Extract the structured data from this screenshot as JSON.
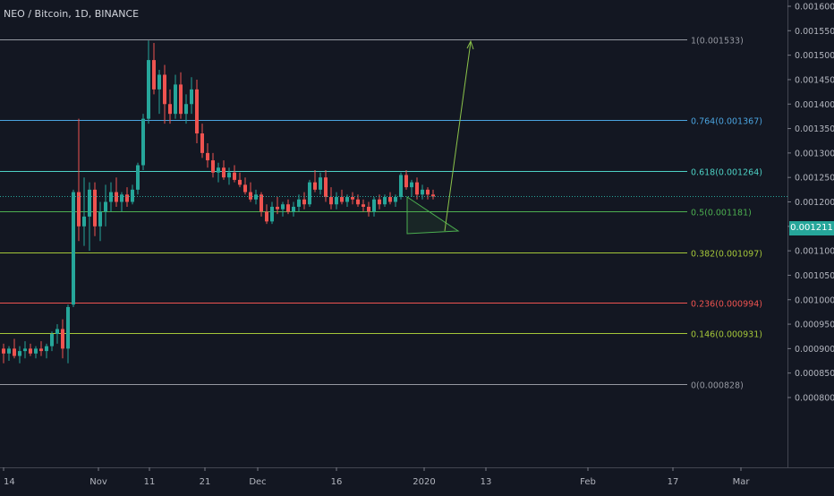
{
  "header": {
    "title": "NEO / Bitcoin, 1D, BINANCE"
  },
  "colors": {
    "background": "#131722",
    "up": "#26a69a",
    "down": "#ef5350",
    "axis_text": "#b2b5be",
    "grid": "#2a2e39",
    "target_arrow": "#8bc34a"
  },
  "chart_data": {
    "type": "candlestick",
    "title": "NEO / Bitcoin, 1D, BINANCE",
    "ylim": [
      0.000795,
      0.001612
    ],
    "y_ticks": [
      "0.001600",
      "0.001550",
      "0.001500",
      "0.001450",
      "0.001400",
      "0.001350",
      "0.001300",
      "0.001250",
      "0.001200",
      "0.001150",
      "0.001100",
      "0.001050",
      "0.001000",
      "0.000950",
      "0.000900",
      "0.000850",
      "0.000800"
    ],
    "x_ticks": [
      "14",
      "Nov",
      "11",
      "21",
      "Dec",
      "16",
      "2020",
      "13",
      "Feb",
      "17",
      "Mar"
    ],
    "last_price": "0.001211",
    "fib_levels": [
      {
        "ratio": "1",
        "value": 0.001533,
        "label": "1(0.001533)",
        "color": "#9598a1"
      },
      {
        "ratio": "0.764",
        "value": 0.001367,
        "label": "0.764(0.001367)",
        "color": "#4aa3df"
      },
      {
        "ratio": "0.618",
        "value": 0.001264,
        "label": "0.618(0.001264)",
        "color": "#4dd0c4"
      },
      {
        "ratio": "0.5",
        "value": 0.001181,
        "label": "0.5(0.001181)",
        "color": "#4caf50"
      },
      {
        "ratio": "0.382",
        "value": 0.001097,
        "label": "0.382(0.001097)",
        "color": "#a4c639"
      },
      {
        "ratio": "0.236",
        "value": 0.000994,
        "label": "0.236(0.000994)",
        "color": "#ef5350"
      },
      {
        "ratio": "0.146",
        "value": 0.000931,
        "label": "0.146(0.000931)",
        "color": "#a4c639"
      },
      {
        "ratio": "0",
        "value": 0.000828,
        "label": "0(0.000828)",
        "color": "#9598a1"
      }
    ],
    "candles": [
      {
        "o": 0.0009,
        "h": 0.00091,
        "l": 0.00087,
        "c": 0.00089
      },
      {
        "o": 0.00089,
        "h": 0.000905,
        "l": 0.000875,
        "c": 0.0009
      },
      {
        "o": 0.0009,
        "h": 0.00092,
        "l": 0.00088,
        "c": 0.000885
      },
      {
        "o": 0.000885,
        "h": 0.000905,
        "l": 0.00087,
        "c": 0.000895
      },
      {
        "o": 0.000895,
        "h": 0.000915,
        "l": 0.00088,
        "c": 0.0009
      },
      {
        "o": 0.0009,
        "h": 0.00091,
        "l": 0.000885,
        "c": 0.00089
      },
      {
        "o": 0.00089,
        "h": 0.000905,
        "l": 0.00088,
        "c": 0.0009
      },
      {
        "o": 0.0009,
        "h": 0.000915,
        "l": 0.000885,
        "c": 0.000895
      },
      {
        "o": 0.000895,
        "h": 0.00091,
        "l": 0.00088,
        "c": 0.000905
      },
      {
        "o": 0.000905,
        "h": 0.000935,
        "l": 0.000895,
        "c": 0.00093
      },
      {
        "o": 0.00093,
        "h": 0.00095,
        "l": 0.00091,
        "c": 0.00094
      },
      {
        "o": 0.00094,
        "h": 0.00096,
        "l": 0.00088,
        "c": 0.0009
      },
      {
        "o": 0.0009,
        "h": 0.00099,
        "l": 0.00087,
        "c": 0.000985
      },
      {
        "o": 0.00099,
        "h": 0.001225,
        "l": 0.000985,
        "c": 0.00122
      },
      {
        "o": 0.00122,
        "h": 0.00137,
        "l": 0.00112,
        "c": 0.00115
      },
      {
        "o": 0.00115,
        "h": 0.00125,
        "l": 0.00111,
        "c": 0.00117
      },
      {
        "o": 0.00117,
        "h": 0.00124,
        "l": 0.0011,
        "c": 0.001225
      },
      {
        "o": 0.001225,
        "h": 0.00124,
        "l": 0.00113,
        "c": 0.00115
      },
      {
        "o": 0.00115,
        "h": 0.0012,
        "l": 0.00112,
        "c": 0.00118
      },
      {
        "o": 0.00118,
        "h": 0.001235,
        "l": 0.00115,
        "c": 0.0012
      },
      {
        "o": 0.0012,
        "h": 0.00124,
        "l": 0.00118,
        "c": 0.00122
      },
      {
        "o": 0.00122,
        "h": 0.00125,
        "l": 0.00119,
        "c": 0.0012
      },
      {
        "o": 0.0012,
        "h": 0.00122,
        "l": 0.00118,
        "c": 0.001215
      },
      {
        "o": 0.001215,
        "h": 0.00123,
        "l": 0.00119,
        "c": 0.0012
      },
      {
        "o": 0.0012,
        "h": 0.001235,
        "l": 0.001195,
        "c": 0.001225
      },
      {
        "o": 0.001225,
        "h": 0.00128,
        "l": 0.001215,
        "c": 0.001275
      },
      {
        "o": 0.001275,
        "h": 0.00138,
        "l": 0.001265,
        "c": 0.00137
      },
      {
        "o": 0.00137,
        "h": 0.00153,
        "l": 0.00136,
        "c": 0.00149
      },
      {
        "o": 0.00149,
        "h": 0.001525,
        "l": 0.00142,
        "c": 0.00143
      },
      {
        "o": 0.00143,
        "h": 0.00147,
        "l": 0.00138,
        "c": 0.00146
      },
      {
        "o": 0.00146,
        "h": 0.00148,
        "l": 0.00136,
        "c": 0.0014
      },
      {
        "o": 0.0014,
        "h": 0.00143,
        "l": 0.00136,
        "c": 0.00138
      },
      {
        "o": 0.00138,
        "h": 0.00146,
        "l": 0.00137,
        "c": 0.00144
      },
      {
        "o": 0.00144,
        "h": 0.001465,
        "l": 0.00137,
        "c": 0.00138
      },
      {
        "o": 0.00138,
        "h": 0.00142,
        "l": 0.00136,
        "c": 0.0014
      },
      {
        "o": 0.0014,
        "h": 0.001455,
        "l": 0.00138,
        "c": 0.00143
      },
      {
        "o": 0.00143,
        "h": 0.00145,
        "l": 0.00132,
        "c": 0.00134
      },
      {
        "o": 0.00134,
        "h": 0.00136,
        "l": 0.00129,
        "c": 0.0013
      },
      {
        "o": 0.0013,
        "h": 0.00132,
        "l": 0.00127,
        "c": 0.001285
      },
      {
        "o": 0.001285,
        "h": 0.0013,
        "l": 0.00125,
        "c": 0.00126
      },
      {
        "o": 0.00126,
        "h": 0.00128,
        "l": 0.00124,
        "c": 0.00127
      },
      {
        "o": 0.00127,
        "h": 0.001285,
        "l": 0.001245,
        "c": 0.00125
      },
      {
        "o": 0.00125,
        "h": 0.00127,
        "l": 0.001235,
        "c": 0.00126
      },
      {
        "o": 0.00126,
        "h": 0.001275,
        "l": 0.00124,
        "c": 0.001245
      },
      {
        "o": 0.001245,
        "h": 0.00126,
        "l": 0.00123,
        "c": 0.001235
      },
      {
        "o": 0.001235,
        "h": 0.00125,
        "l": 0.001215,
        "c": 0.00122
      },
      {
        "o": 0.00122,
        "h": 0.00124,
        "l": 0.0012,
        "c": 0.001205
      },
      {
        "o": 0.001205,
        "h": 0.001225,
        "l": 0.001195,
        "c": 0.001215
      },
      {
        "o": 0.001215,
        "h": 0.00122,
        "l": 0.00117,
        "c": 0.00118
      },
      {
        "o": 0.00118,
        "h": 0.001195,
        "l": 0.001155,
        "c": 0.00116
      },
      {
        "o": 0.00116,
        "h": 0.0012,
        "l": 0.001155,
        "c": 0.00119
      },
      {
        "o": 0.00119,
        "h": 0.00121,
        "l": 0.001175,
        "c": 0.001185
      },
      {
        "o": 0.001185,
        "h": 0.0012,
        "l": 0.00117,
        "c": 0.001195
      },
      {
        "o": 0.001195,
        "h": 0.001205,
        "l": 0.001175,
        "c": 0.00118
      },
      {
        "o": 0.00118,
        "h": 0.0012,
        "l": 0.00117,
        "c": 0.00119
      },
      {
        "o": 0.00119,
        "h": 0.001215,
        "l": 0.00118,
        "c": 0.001205
      },
      {
        "o": 0.001205,
        "h": 0.00122,
        "l": 0.001185,
        "c": 0.001195
      },
      {
        "o": 0.001195,
        "h": 0.001245,
        "l": 0.00119,
        "c": 0.00124
      },
      {
        "o": 0.00124,
        "h": 0.001265,
        "l": 0.00122,
        "c": 0.001225
      },
      {
        "o": 0.001225,
        "h": 0.00126,
        "l": 0.001215,
        "c": 0.00125
      },
      {
        "o": 0.00125,
        "h": 0.001265,
        "l": 0.0012,
        "c": 0.00121
      },
      {
        "o": 0.00121,
        "h": 0.00123,
        "l": 0.001185,
        "c": 0.001195
      },
      {
        "o": 0.001195,
        "h": 0.00122,
        "l": 0.001185,
        "c": 0.00121
      },
      {
        "o": 0.00121,
        "h": 0.001225,
        "l": 0.001195,
        "c": 0.0012
      },
      {
        "o": 0.0012,
        "h": 0.001215,
        "l": 0.00119,
        "c": 0.00121
      },
      {
        "o": 0.00121,
        "h": 0.00122,
        "l": 0.001195,
        "c": 0.001205
      },
      {
        "o": 0.001205,
        "h": 0.001215,
        "l": 0.00119,
        "c": 0.001195
      },
      {
        "o": 0.001195,
        "h": 0.001205,
        "l": 0.00118,
        "c": 0.00119
      },
      {
        "o": 0.00119,
        "h": 0.0012,
        "l": 0.00117,
        "c": 0.00118
      },
      {
        "o": 0.00118,
        "h": 0.00121,
        "l": 0.00117,
        "c": 0.001205
      },
      {
        "o": 0.001205,
        "h": 0.001215,
        "l": 0.001185,
        "c": 0.001195
      },
      {
        "o": 0.001195,
        "h": 0.001215,
        "l": 0.00119,
        "c": 0.00121
      },
      {
        "o": 0.00121,
        "h": 0.00122,
        "l": 0.001195,
        "c": 0.0012
      },
      {
        "o": 0.0012,
        "h": 0.001215,
        "l": 0.00119,
        "c": 0.00121
      },
      {
        "o": 0.00121,
        "h": 0.00126,
        "l": 0.001205,
        "c": 0.001255
      },
      {
        "o": 0.001255,
        "h": 0.001265,
        "l": 0.001225,
        "c": 0.00123
      },
      {
        "o": 0.00123,
        "h": 0.001245,
        "l": 0.00121,
        "c": 0.00124
      },
      {
        "o": 0.00124,
        "h": 0.00125,
        "l": 0.001205,
        "c": 0.001215
      },
      {
        "o": 0.001215,
        "h": 0.001235,
        "l": 0.001205,
        "c": 0.001225
      },
      {
        "o": 0.001225,
        "h": 0.00123,
        "l": 0.001205,
        "c": 0.001215
      },
      {
        "o": 0.001215,
        "h": 0.001225,
        "l": 0.001205,
        "c": 0.001211
      }
    ]
  }
}
